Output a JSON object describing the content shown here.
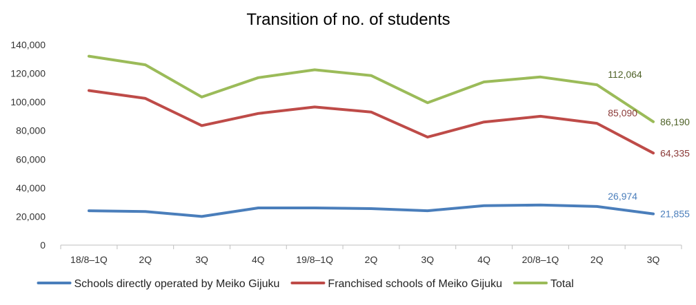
{
  "chart_data": {
    "type": "line",
    "title": "Transition of no. of students",
    "xlabel": "",
    "ylabel": "",
    "categories": [
      "18/8–1Q",
      "2Q",
      "3Q",
      "4Q",
      "19/8–1Q",
      "2Q",
      "3Q",
      "4Q",
      "20/8–1Q",
      "2Q",
      "3Q"
    ],
    "y_ticks": [
      "0",
      "20,000",
      "40,000",
      "60,000",
      "80,000",
      "100,000",
      "120,000",
      "140,000"
    ],
    "ylim": [
      0,
      140000
    ],
    "grid": false,
    "legend_position": "bottom",
    "series": [
      {
        "name": "Schools directly operated by Meiko Gijuku",
        "color": "#4A7EBB",
        "values": [
          24000,
          23500,
          20000,
          26000,
          26000,
          25500,
          24000,
          27500,
          28000,
          26974,
          21855
        ],
        "labels": [
          {
            "index": 9,
            "text": "26,974"
          },
          {
            "index": 10,
            "text": "21,855"
          }
        ]
      },
      {
        "name": "Franchised schools of Meiko Gijuku",
        "color": "#BE4B48",
        "values": [
          108000,
          102500,
          83500,
          92000,
          96500,
          93000,
          75500,
          86000,
          90000,
          85090,
          64335
        ],
        "labels": [
          {
            "index": 9,
            "text": "85,090"
          },
          {
            "index": 10,
            "text": "64,335"
          }
        ]
      },
      {
        "name": "Total",
        "color": "#9BBB59",
        "values": [
          132000,
          126000,
          103500,
          117000,
          122500,
          118500,
          99500,
          114000,
          117500,
          112064,
          86190
        ],
        "labels": [
          {
            "index": 9,
            "text": "112,064"
          },
          {
            "index": 10,
            "text": "86,190"
          }
        ]
      }
    ]
  }
}
